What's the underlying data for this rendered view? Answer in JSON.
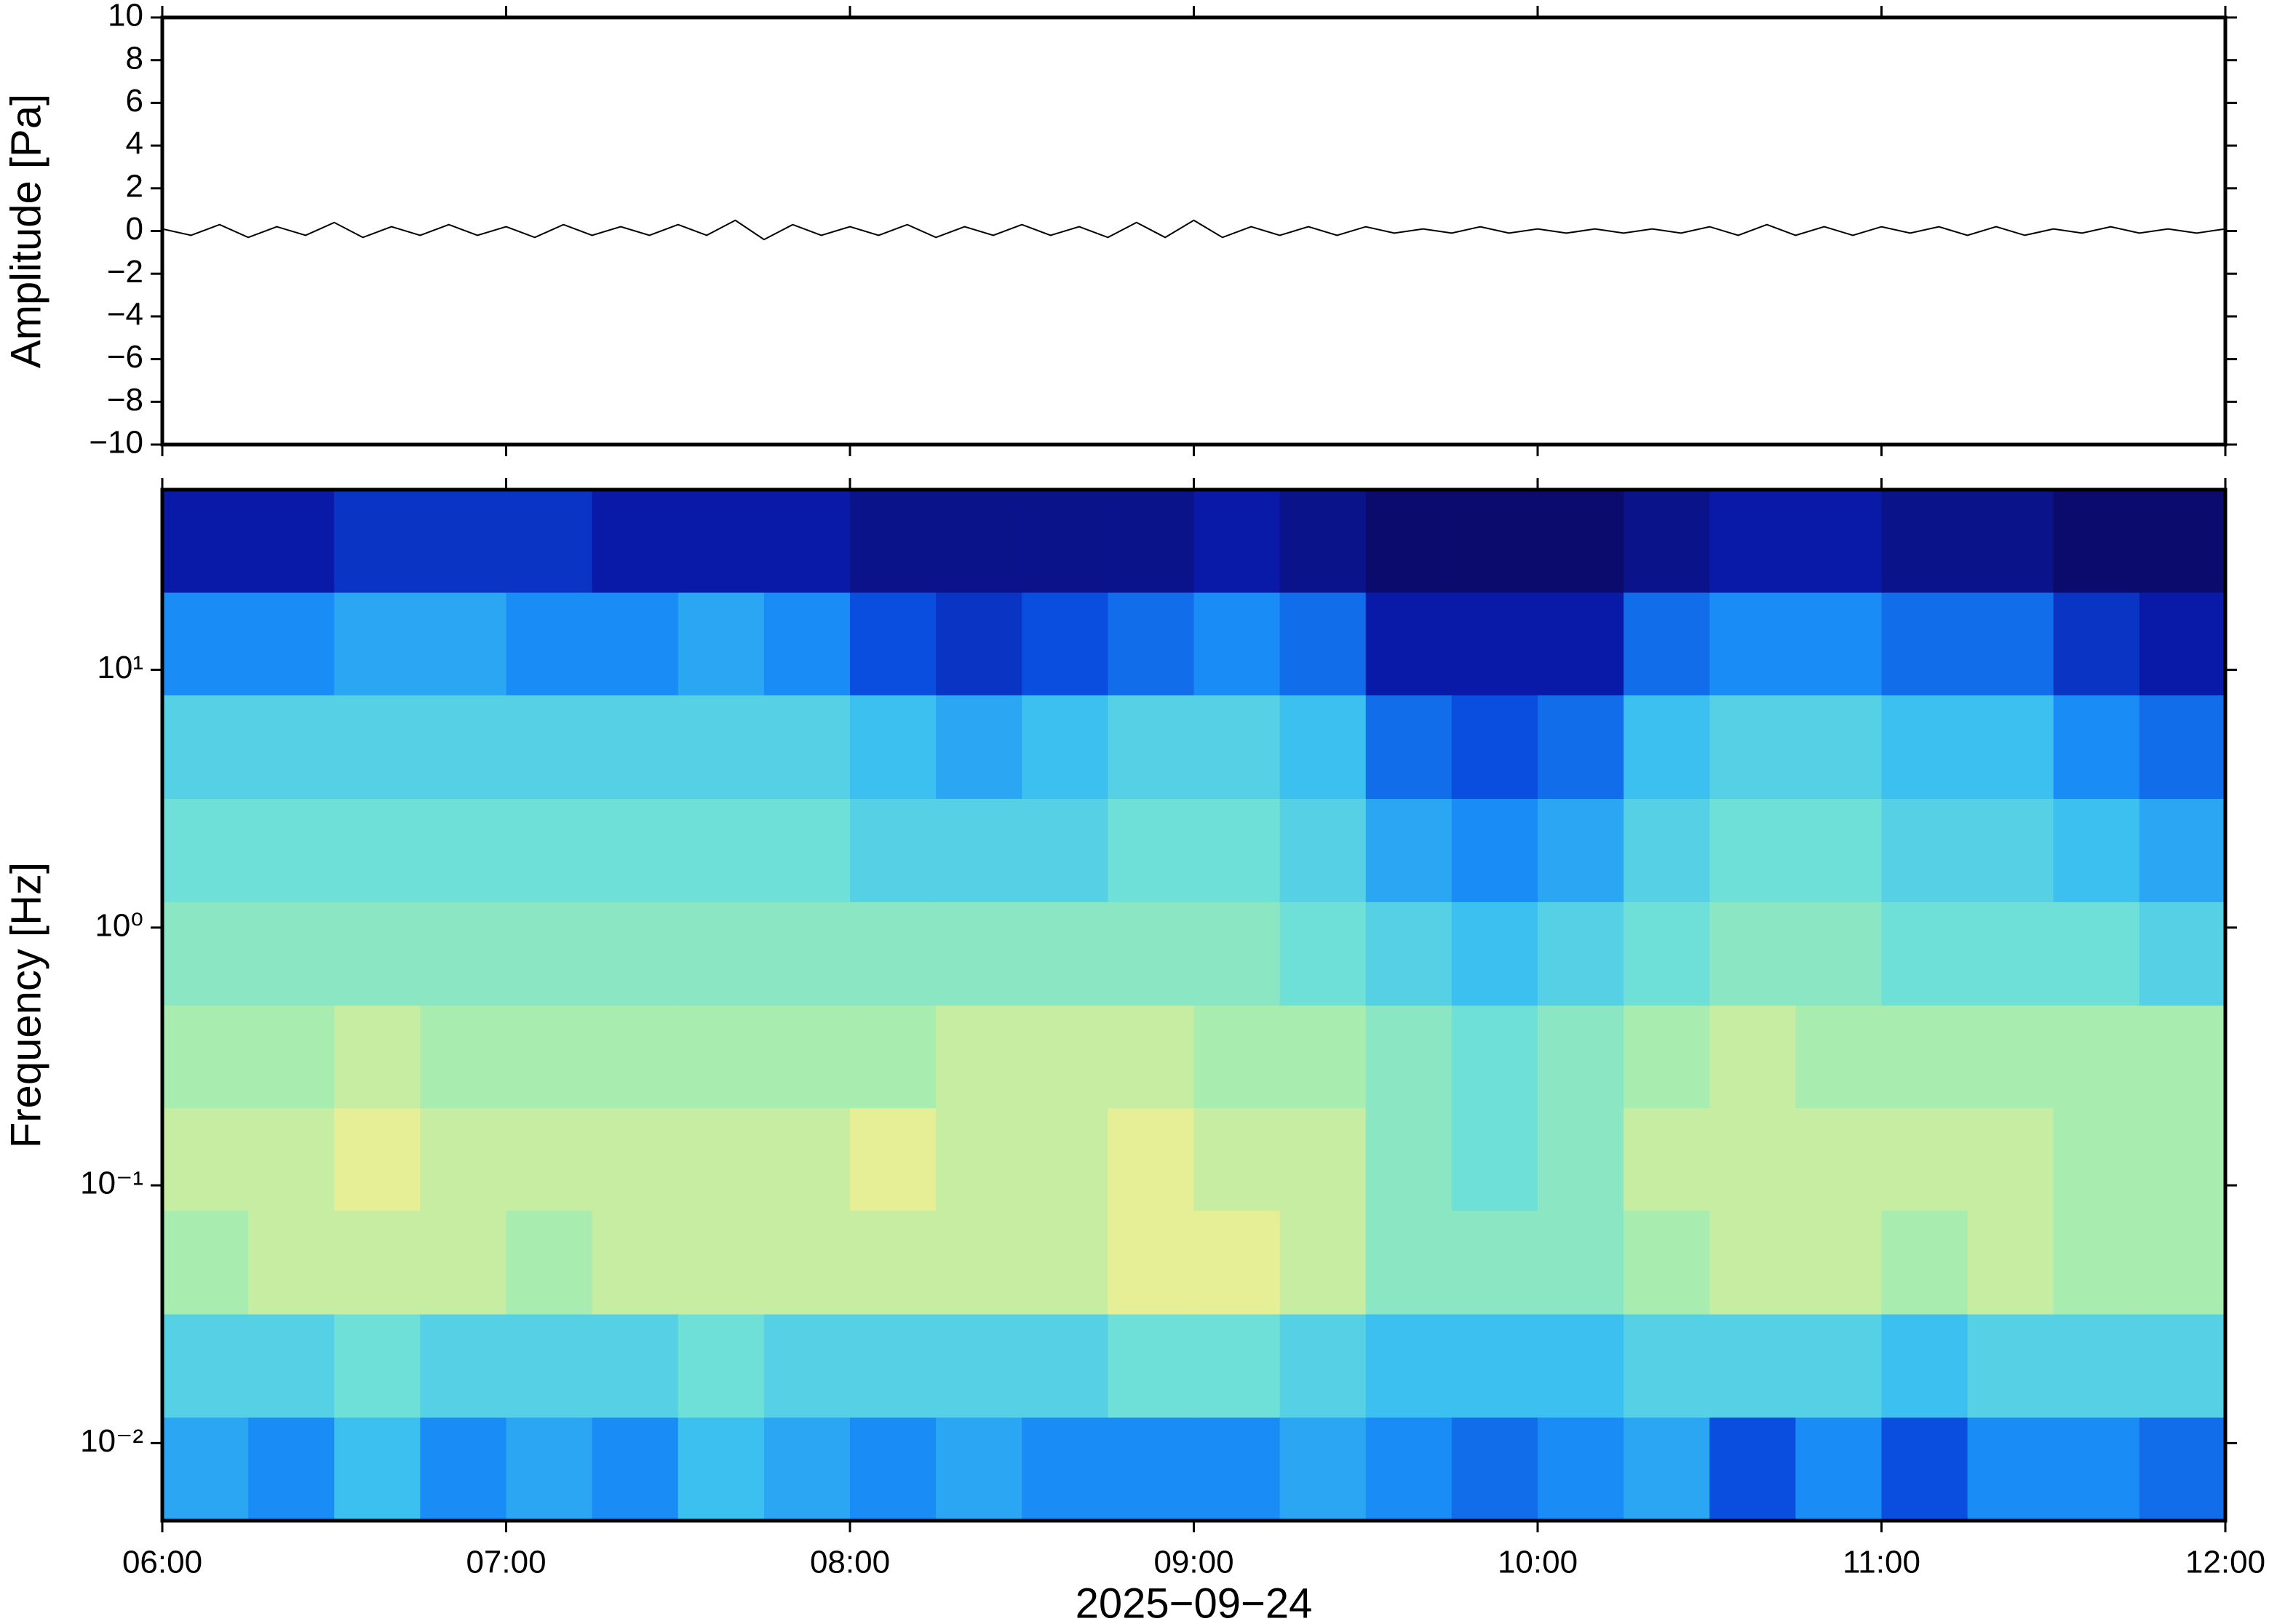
{
  "chart_data": [
    {
      "type": "line",
      "ylabel": "Amplitude [Pa]",
      "x": [
        "06:00",
        "06:05",
        "06:10",
        "06:15",
        "06:20",
        "06:25",
        "06:30",
        "06:35",
        "06:40",
        "06:45",
        "06:50",
        "06:55",
        "07:00",
        "07:05",
        "07:10",
        "07:15",
        "07:20",
        "07:25",
        "07:30",
        "07:35",
        "07:40",
        "07:45",
        "07:50",
        "07:55",
        "08:00",
        "08:05",
        "08:10",
        "08:15",
        "08:20",
        "08:25",
        "08:30",
        "08:35",
        "08:40",
        "08:45",
        "08:50",
        "08:55",
        "09:00",
        "09:05",
        "09:10",
        "09:15",
        "09:20",
        "09:25",
        "09:30",
        "09:35",
        "09:40",
        "09:45",
        "09:50",
        "09:55",
        "10:00",
        "10:05",
        "10:10",
        "10:15",
        "10:20",
        "10:25",
        "10:30",
        "10:35",
        "10:40",
        "10:45",
        "10:50",
        "10:55",
        "11:00",
        "11:05",
        "11:10",
        "11:15",
        "11:20",
        "11:25",
        "11:30",
        "11:35",
        "11:40",
        "11:45",
        "11:50",
        "11:55",
        "12:00"
      ],
      "values": [
        0.1,
        -0.2,
        0.3,
        -0.3,
        0.2,
        -0.2,
        0.4,
        -0.3,
        0.2,
        -0.2,
        0.3,
        -0.2,
        0.2,
        -0.3,
        0.3,
        -0.2,
        0.2,
        -0.2,
        0.3,
        -0.2,
        0.5,
        -0.4,
        0.3,
        -0.2,
        0.2,
        -0.2,
        0.3,
        -0.3,
        0.2,
        -0.2,
        0.3,
        -0.2,
        0.2,
        -0.3,
        0.4,
        -0.3,
        0.5,
        -0.3,
        0.2,
        -0.2,
        0.2,
        -0.2,
        0.2,
        -0.1,
        0.1,
        -0.1,
        0.2,
        -0.1,
        0.1,
        -0.1,
        0.1,
        -0.1,
        0.1,
        -0.1,
        0.2,
        -0.2,
        0.3,
        -0.2,
        0.2,
        -0.2,
        0.2,
        -0.1,
        0.2,
        -0.2,
        0.2,
        -0.2,
        0.1,
        -0.1,
        0.2,
        -0.1,
        0.1,
        -0.1,
        0.1
      ],
      "color": "#000000",
      "xlim": [
        "06:00",
        "12:00"
      ],
      "xticks": [
        "06:00",
        "07:00",
        "08:00",
        "09:00",
        "10:00",
        "11:00",
        "12:00"
      ],
      "ylim": [
        -10,
        10
      ],
      "yticks": [
        {
          "value": -10,
          "label": "−10"
        },
        {
          "value": -8,
          "label": "−8"
        },
        {
          "value": -6,
          "label": "−6"
        },
        {
          "value": -4,
          "label": "−4"
        },
        {
          "value": -2,
          "label": "−2"
        },
        0,
        2,
        4,
        6,
        8,
        10
      ]
    },
    {
      "type": "heatmap",
      "ylabel": "Frequency [Hz]",
      "xlabel": "2025−09−24",
      "log_y": true,
      "xbins": [
        "06:00",
        "06:15",
        "06:30",
        "06:45",
        "07:00",
        "07:15",
        "07:30",
        "07:45",
        "08:00",
        "08:15",
        "08:30",
        "08:45",
        "09:00",
        "09:15",
        "09:30",
        "09:45",
        "10:00",
        "10:15",
        "10:30",
        "10:45",
        "11:00",
        "11:15",
        "11:30",
        "11:45",
        "12:00"
      ],
      "ybins": [
        0.005,
        0.0126,
        0.0317,
        0.08,
        0.2,
        0.5,
        1.26,
        3.17,
        8,
        20,
        50
      ],
      "zlim": [
        0,
        10
      ],
      "colormap": [
        "#0b0b6e",
        "#0a1aa8",
        "#0a4ee0",
        "#1a8cf5",
        "#3cc0f0",
        "#6ee0d8",
        "#a8ecb0",
        "#e6ee96",
        "#f5cc78",
        "#f29a5a",
        "#e8602c"
      ],
      "z": [
        [
          3.5,
          3,
          4,
          3,
          3.5,
          3,
          4,
          3.5,
          3,
          3.5,
          3,
          3,
          3,
          3.5,
          3,
          2.5,
          3,
          3.5,
          2,
          3,
          2,
          3,
          3,
          2.5
        ],
        [
          4.5,
          4.5,
          5,
          4.5,
          4.5,
          4.5,
          5,
          4.5,
          4.5,
          4.5,
          4.5,
          5,
          5,
          4.5,
          4,
          4,
          4,
          4.5,
          4.5,
          4.5,
          4,
          4.5,
          4.5,
          4.5
        ],
        [
          6,
          6.5,
          6.5,
          6.5,
          6,
          6.5,
          6.5,
          6.5,
          6.5,
          6.5,
          6.5,
          7,
          7,
          6.5,
          5.5,
          5.5,
          5.5,
          6,
          6.5,
          6.5,
          6,
          6.5,
          6,
          6
        ],
        [
          6.5,
          6.5,
          7,
          6.5,
          6.5,
          6.5,
          6.5,
          6.5,
          7,
          6.5,
          6.5,
          7,
          6.5,
          6.5,
          5.5,
          5,
          5.5,
          6.5,
          6.5,
          6.5,
          6.5,
          6.5,
          6,
          6
        ],
        [
          6,
          6,
          6.5,
          6,
          6,
          6,
          6,
          6,
          6,
          6.5,
          6.5,
          6.5,
          6,
          6,
          5.5,
          5,
          5.5,
          6,
          6.5,
          6,
          6,
          6,
          6,
          6
        ],
        [
          5.5,
          5.5,
          5.5,
          5.5,
          5.5,
          5.5,
          5.5,
          5.5,
          5.5,
          5.5,
          5.5,
          5.5,
          5.5,
          5,
          4.5,
          4,
          4.5,
          5,
          5.5,
          5.5,
          5,
          5,
          5,
          4.5
        ],
        [
          5,
          5,
          5,
          5,
          5,
          5,
          5,
          5,
          4.5,
          4.5,
          4.5,
          5,
          5,
          4.5,
          3.5,
          3,
          3.5,
          4.5,
          5,
          5,
          4.5,
          4.5,
          4,
          3.5
        ],
        [
          4.5,
          4.5,
          4.5,
          4.5,
          4.5,
          4.5,
          4.5,
          4.5,
          4,
          3.5,
          4,
          4.5,
          4.5,
          4,
          2.5,
          2,
          2.5,
          4,
          4.5,
          4.5,
          4,
          4,
          3,
          2.5
        ],
        [
          3,
          3,
          3.5,
          3.5,
          3,
          3,
          3.5,
          3,
          2,
          1.5,
          2,
          2.5,
          3,
          2.5,
          1,
          1,
          1,
          2.5,
          3,
          3,
          2.5,
          2.5,
          1.5,
          1
        ],
        [
          1,
          1,
          1.5,
          1.5,
          1.5,
          1,
          1,
          1,
          0.5,
          0.5,
          0.5,
          0.5,
          1,
          0.5,
          0,
          0,
          0,
          0.5,
          1,
          1,
          0.5,
          0.5,
          0,
          0
        ]
      ],
      "xlim": [
        "06:00",
        "12:00"
      ],
      "xticks": [
        "06:00",
        "07:00",
        "08:00",
        "09:00",
        "10:00",
        "11:00",
        "12:00"
      ],
      "ylim": [
        0.005,
        50
      ],
      "yticks": [
        {
          "value": 0.01,
          "label": "10⁻²"
        },
        {
          "value": 0.1,
          "label": "10⁻¹"
        },
        {
          "value": 1,
          "label": "10⁰"
        },
        {
          "value": 10,
          "label": "10¹"
        }
      ]
    }
  ]
}
